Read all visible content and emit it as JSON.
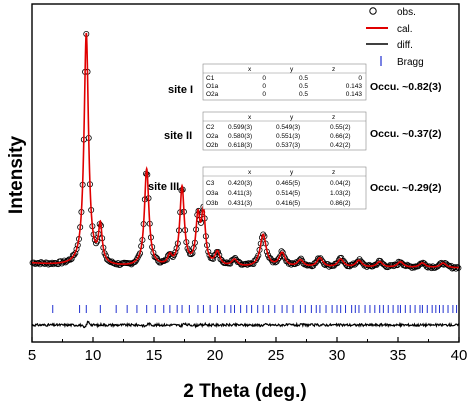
{
  "chart_data": {
    "type": "line",
    "xlabel": "2 Theta (deg.)",
    "ylabel": "Intensity",
    "xlim": [
      5,
      40
    ],
    "x_ticks": [
      5,
      10,
      15,
      20,
      25,
      30,
      35,
      40
    ],
    "legend": {
      "placement": "top-right",
      "entries": [
        {
          "label": "obs.",
          "marker": "open-circle",
          "color": "#000000"
        },
        {
          "label": "cal.",
          "marker": "line",
          "color": "#e00000"
        },
        {
          "label": "diff.",
          "marker": "line",
          "color": "#000000"
        },
        {
          "label": "Bragg",
          "marker": "tick",
          "color": "#2030d0"
        }
      ]
    },
    "background": 0.12,
    "peaks": [
      {
        "x": 9.45,
        "height": 1.0,
        "width": 0.22
      },
      {
        "x": 10.6,
        "height": 0.16,
        "width": 0.18
      },
      {
        "x": 14.4,
        "height": 0.42,
        "width": 0.22
      },
      {
        "x": 16.3,
        "height": 0.04,
        "width": 0.2
      },
      {
        "x": 17.3,
        "height": 0.34,
        "width": 0.22
      },
      {
        "x": 18.6,
        "height": 0.2,
        "width": 0.2
      },
      {
        "x": 19.05,
        "height": 0.22,
        "width": 0.2
      },
      {
        "x": 20.2,
        "height": 0.06,
        "width": 0.25
      },
      {
        "x": 21.6,
        "height": 0.03,
        "width": 0.3
      },
      {
        "x": 23.95,
        "height": 0.14,
        "width": 0.3
      },
      {
        "x": 25.5,
        "height": 0.06,
        "width": 0.3
      },
      {
        "x": 27.0,
        "height": 0.03,
        "width": 0.3
      },
      {
        "x": 28.6,
        "height": 0.04,
        "width": 0.3
      },
      {
        "x": 30.3,
        "height": 0.035,
        "width": 0.3
      },
      {
        "x": 31.8,
        "height": 0.03,
        "width": 0.3
      },
      {
        "x": 33.5,
        "height": 0.025,
        "width": 0.3
      },
      {
        "x": 35.2,
        "height": 0.025,
        "width": 0.3
      },
      {
        "x": 37.0,
        "height": 0.02,
        "width": 0.3
      },
      {
        "x": 38.7,
        "height": 0.02,
        "width": 0.3
      }
    ],
    "bragg_positions": [
      6.7,
      8.9,
      9.45,
      10.6,
      11.9,
      12.8,
      13.6,
      14.4,
      15.1,
      15.8,
      16.3,
      16.9,
      17.3,
      17.9,
      18.6,
      19.05,
      19.6,
      20.2,
      20.8,
      21.3,
      21.6,
      22.1,
      22.6,
      23.0,
      23.5,
      23.95,
      24.4,
      24.9,
      25.5,
      25.9,
      26.4,
      27.0,
      27.4,
      27.9,
      28.3,
      28.6,
      29.1,
      29.6,
      30.0,
      30.3,
      30.7,
      31.2,
      31.5,
      31.8,
      32.3,
      32.7,
      33.1,
      33.5,
      33.8,
      34.2,
      34.6,
      35.0,
      35.2,
      35.6,
      36.0,
      36.4,
      36.8,
      37.0,
      37.4,
      37.8,
      38.1,
      38.4,
      38.7,
      39.1,
      39.5,
      39.8
    ],
    "sites": [
      {
        "label": "site I",
        "occupancy": "Occu. ~0.82(3)",
        "headers": [
          "",
          "x",
          "y",
          "z"
        ],
        "rows": [
          [
            "C1",
            "0",
            "0.5",
            "0"
          ],
          [
            "O1a",
            "0",
            "0.5",
            "0.143"
          ],
          [
            "O2a",
            "0",
            "0.5",
            "0.143"
          ]
        ]
      },
      {
        "label": "site II",
        "occupancy": "Occu. ~0.37(2)",
        "headers": [
          "",
          "x",
          "y",
          "z"
        ],
        "rows": [
          [
            "C2",
            "0.599(3)",
            "0.549(3)",
            "0.55(2)"
          ],
          [
            "O2a",
            "0.580(3)",
            "0.551(3)",
            "0.66(2)"
          ],
          [
            "O2b",
            "0.618(3)",
            "0.537(3)",
            "0.42(2)"
          ]
        ]
      },
      {
        "label": "site III",
        "occupancy": "Occu. ~0.29(2)",
        "headers": [
          "",
          "x",
          "y",
          "z"
        ],
        "rows": [
          [
            "C3",
            "0.420(3)",
            "0.465(5)",
            "0.04(2)"
          ],
          [
            "O3a",
            "0.411(3)",
            "0.514(5)",
            "1.03(2)"
          ],
          [
            "O3b",
            "0.431(3)",
            "0.416(5)",
            "0.86(2)"
          ]
        ]
      }
    ]
  }
}
